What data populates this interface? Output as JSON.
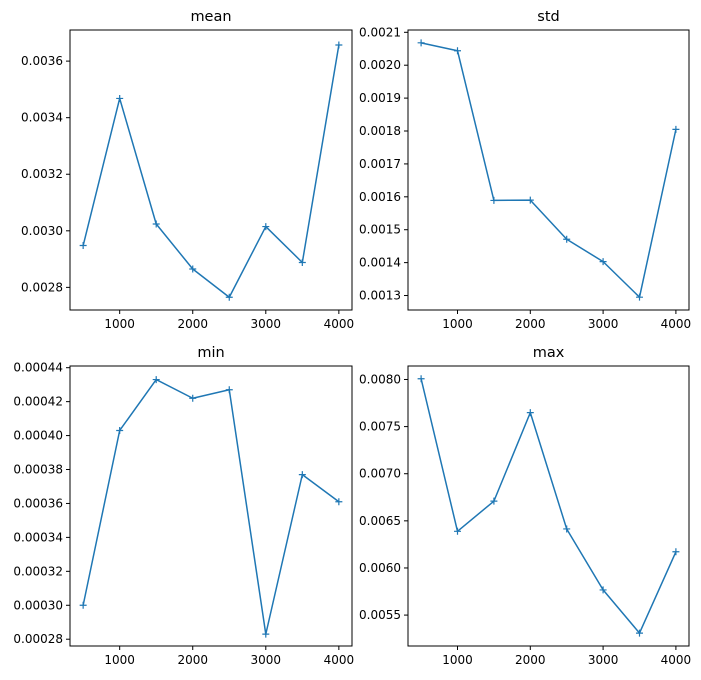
{
  "chart_data": [
    {
      "type": "line",
      "title": "mean",
      "x": [
        500,
        1000,
        1500,
        2000,
        2500,
        3000,
        3500,
        4000
      ],
      "series": [
        {
          "values": [
            0.002948,
            0.003468,
            0.003024,
            0.002865,
            0.002765,
            0.003015,
            0.002888,
            0.003657
          ]
        }
      ],
      "xlim": [
        320,
        4180
      ],
      "ylim": [
        0.00272,
        0.00371
      ],
      "xticks": [
        1000,
        2000,
        3000,
        4000
      ],
      "xtick_labels": [
        "1000",
        "2000",
        "3000",
        "4000"
      ],
      "yticks": [
        0.0028,
        0.003,
        0.0032,
        0.0034,
        0.0036
      ],
      "ytick_labels": [
        "0.0028",
        "0.0030",
        "0.0032",
        "0.0034",
        "0.0036"
      ],
      "marker": "+",
      "color": "#1f77b4",
      "grid": false
    },
    {
      "type": "line",
      "title": "std",
      "x": [
        500,
        1000,
        1500,
        2000,
        2500,
        3000,
        3500,
        4000
      ],
      "series": [
        {
          "values": [
            0.002068,
            0.002044,
            0.001589,
            0.00159,
            0.001471,
            0.001403,
            0.001295,
            0.001805
          ]
        }
      ],
      "xlim": [
        320,
        4180
      ],
      "ylim": [
        0.001256,
        0.002107
      ],
      "xticks": [
        1000,
        2000,
        3000,
        4000
      ],
      "xtick_labels": [
        "1000",
        "2000",
        "3000",
        "4000"
      ],
      "yticks": [
        0.0013,
        0.0014,
        0.0015,
        0.0016,
        0.0017,
        0.0018,
        0.0019,
        0.002,
        0.0021
      ],
      "ytick_labels": [
        "0.0013",
        "0.0014",
        "0.0015",
        "0.0016",
        "0.0017",
        "0.0018",
        "0.0019",
        "0.0020",
        "0.0021"
      ],
      "marker": "+",
      "color": "#1f77b4",
      "grid": false
    },
    {
      "type": "line",
      "title": "min",
      "x": [
        500,
        1000,
        1500,
        2000,
        2500,
        3000,
        3500,
        4000
      ],
      "series": [
        {
          "values": [
            0.0003,
            0.000403,
            0.000433,
            0.000422,
            0.000427,
            0.000283,
            0.000377,
            0.000361
          ]
        }
      ],
      "xlim": [
        320,
        4180
      ],
      "ylim": [
        0.000276,
        0.000441
      ],
      "xticks": [
        1000,
        2000,
        3000,
        4000
      ],
      "xtick_labels": [
        "1000",
        "2000",
        "3000",
        "4000"
      ],
      "yticks": [
        0.00028,
        0.0003,
        0.00032,
        0.00034,
        0.00036,
        0.00038,
        0.0004,
        0.00042,
        0.00044
      ],
      "ytick_labels": [
        "0.00028",
        "0.00030",
        "0.00032",
        "0.00034",
        "0.00036",
        "0.00038",
        "0.00040",
        "0.00042",
        "0.00044"
      ],
      "marker": "+",
      "color": "#1f77b4",
      "grid": false
    },
    {
      "type": "line",
      "title": "max",
      "x": [
        500,
        1000,
        1500,
        2000,
        2500,
        3000,
        3500,
        4000
      ],
      "series": [
        {
          "values": [
            0.008008,
            0.006389,
            0.006709,
            0.007648,
            0.006414,
            0.005767,
            0.005309,
            0.006172
          ]
        }
      ],
      "xlim": [
        320,
        4180
      ],
      "ylim": [
        0.005172,
        0.008143
      ],
      "xticks": [
        1000,
        2000,
        3000,
        4000
      ],
      "xtick_labels": [
        "1000",
        "2000",
        "3000",
        "4000"
      ],
      "yticks": [
        0.0055,
        0.006,
        0.0065,
        0.007,
        0.0075,
        0.008
      ],
      "ytick_labels": [
        "0.0055",
        "0.0060",
        "0.0065",
        "0.0070",
        "0.0075",
        "0.0080"
      ],
      "marker": "+",
      "color": "#1f77b4",
      "grid": false
    }
  ]
}
